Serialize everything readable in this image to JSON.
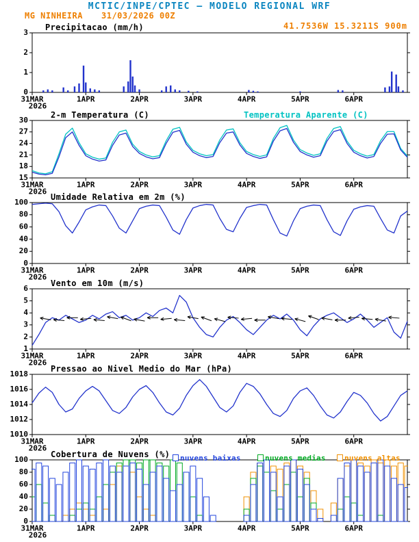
{
  "header": {
    "title": "MCTIC/INPE/CPTEC — MODELO REGIONAL WRF",
    "station": "MG NINHEIRA",
    "datetime": "31/03/2026 00Z",
    "location": "41.7536W 15.3211S 900m"
  },
  "colors": {
    "header": "#0a85c0",
    "accent_orange": "#ee7f00",
    "axis": "#000000",
    "line_blue": "#2233cc",
    "apparent_cyan": "#00c2c2",
    "wind_barb": "#000000",
    "cloud_low": "#2244dd",
    "cloud_mid": "#00aa22",
    "cloud_high": "#f09000"
  },
  "x_axis": {
    "tick_labels": [
      "31MAR",
      "1APR",
      "2APR",
      "3APR",
      "4APR",
      "5APR",
      "6APR"
    ],
    "year_label": "2026",
    "hours_total": 168
  },
  "chart_data": [
    {
      "type": "bar",
      "title": "Precipitacao (mm/h)",
      "ylabel": "mm/h",
      "ylim": [
        0,
        3
      ],
      "yticks": [
        0,
        1,
        2,
        3
      ],
      "color_key": "line_blue",
      "bars": [
        [
          5,
          0.1
        ],
        [
          7,
          0.15
        ],
        [
          9,
          0.1
        ],
        [
          14,
          0.25
        ],
        [
          16,
          0.1
        ],
        [
          19,
          0.3
        ],
        [
          21,
          0.45
        ],
        [
          23,
          1.35
        ],
        [
          24,
          0.5
        ],
        [
          26,
          0.2
        ],
        [
          28,
          0.15
        ],
        [
          30,
          0.1
        ],
        [
          41,
          0.3
        ],
        [
          43,
          0.55
        ],
        [
          44,
          1.62
        ],
        [
          45,
          0.8
        ],
        [
          46,
          0.35
        ],
        [
          48,
          0.15
        ],
        [
          58,
          0.1
        ],
        [
          60,
          0.3
        ],
        [
          62,
          0.35
        ],
        [
          64,
          0.15
        ],
        [
          66,
          0.1
        ],
        [
          70,
          0.08
        ],
        [
          74,
          0.05
        ],
        [
          97,
          0.12
        ],
        [
          99,
          0.08
        ],
        [
          101,
          0.05
        ],
        [
          120,
          0.05
        ],
        [
          137,
          0.12
        ],
        [
          139,
          0.1
        ],
        [
          158,
          0.25
        ],
        [
          160,
          0.3
        ],
        [
          161,
          1.05
        ],
        [
          163,
          0.9
        ],
        [
          164,
          0.3
        ],
        [
          166,
          0.1
        ]
      ]
    },
    {
      "type": "line",
      "title": "2-m Temperatura (C)",
      "ylim": [
        15,
        30
      ],
      "yticks": [
        15,
        18,
        21,
        24,
        27,
        30
      ],
      "step_hours": 3,
      "series": [
        {
          "name": "2-m Temperatura (C)",
          "color_key": "line_blue",
          "values": [
            16.5,
            16.0,
            15.8,
            16.2,
            20.5,
            25.5,
            27.0,
            23.5,
            20.8,
            19.9,
            19.4,
            19.7,
            23.5,
            26.2,
            26.7,
            23.2,
            21.4,
            20.5,
            20.0,
            20.3,
            24.0,
            26.9,
            27.4,
            23.8,
            21.7,
            20.8,
            20.3,
            20.6,
            24.2,
            26.7,
            27.0,
            23.6,
            21.4,
            20.6,
            20.1,
            20.5,
            24.6,
            27.3,
            27.9,
            24.3,
            21.9,
            21.0,
            20.4,
            20.8,
            24.6,
            27.1,
            27.6,
            24.0,
            21.7,
            20.8,
            20.2,
            20.6,
            24.0,
            26.4,
            26.5,
            22.3,
            20.4
          ]
        },
        {
          "name": "Temperatura Aparente (C)",
          "color_key": "apparent_cyan",
          "values": [
            16.9,
            16.3,
            16.1,
            16.6,
            21.3,
            26.4,
            28.0,
            24.2,
            21.3,
            20.4,
            19.9,
            20.2,
            24.3,
            27.0,
            27.5,
            23.8,
            21.9,
            21.0,
            20.5,
            20.8,
            24.7,
            27.7,
            28.2,
            24.4,
            22.2,
            21.3,
            20.8,
            21.1,
            24.9,
            27.5,
            27.8,
            24.2,
            21.9,
            21.1,
            20.6,
            21.0,
            25.3,
            28.1,
            28.7,
            24.9,
            22.4,
            21.5,
            20.9,
            21.3,
            25.3,
            27.9,
            28.4,
            24.6,
            22.2,
            21.3,
            20.7,
            21.1,
            24.7,
            27.1,
            27.1,
            22.7,
            20.7
          ]
        }
      ]
    },
    {
      "type": "line",
      "title": "Umidade Relativa em 2m (%)",
      "ylim": [
        0,
        100
      ],
      "yticks": [
        0,
        20,
        40,
        60,
        80,
        100
      ],
      "step_hours": 3,
      "series": [
        {
          "name": "Umidade Relativa",
          "color_key": "line_blue",
          "values": [
            97,
            98,
            99,
            98,
            85,
            62,
            50,
            68,
            88,
            93,
            96,
            95,
            78,
            58,
            50,
            70,
            90,
            94,
            96,
            95,
            76,
            55,
            48,
            72,
            91,
            95,
            97,
            96,
            74,
            56,
            52,
            74,
            92,
            95,
            97,
            96,
            72,
            50,
            45,
            70,
            90,
            94,
            96,
            95,
            72,
            52,
            46,
            70,
            89,
            93,
            95,
            94,
            74,
            55,
            50,
            78,
            86
          ]
        }
      ]
    },
    {
      "type": "wind",
      "title": "Vento em 10m (m/s)",
      "ylim": [
        1,
        6
      ],
      "yticks": [
        1,
        2,
        3,
        4,
        5,
        6
      ],
      "step_hours": 3,
      "series": [
        {
          "name": "Vento em 10m",
          "color_key": "line_blue",
          "values": [
            1.3,
            2.2,
            3.2,
            3.6,
            3.4,
            3.8,
            3.5,
            3.2,
            3.4,
            3.8,
            3.5,
            3.9,
            4.1,
            3.6,
            3.8,
            3.4,
            3.6,
            4.0,
            3.7,
            4.2,
            4.4,
            4.0,
            5.45,
            4.9,
            3.6,
            2.8,
            2.2,
            2.0,
            2.8,
            3.4,
            3.7,
            3.2,
            2.6,
            2.2,
            2.8,
            3.4,
            3.8,
            3.5,
            3.9,
            3.4,
            2.6,
            2.1,
            2.9,
            3.5,
            3.8,
            4.0,
            3.6,
            3.2,
            3.5,
            3.9,
            3.4,
            2.8,
            3.2,
            3.6,
            2.4,
            1.9,
            3.3
          ]
        }
      ],
      "barbs": [
        [
          6,
          3.5,
          100
        ],
        [
          12,
          3.4,
          95
        ],
        [
          18,
          3.6,
          90
        ],
        [
          24,
          3.5,
          85
        ],
        [
          30,
          3.4,
          95
        ],
        [
          36,
          3.6,
          100
        ],
        [
          42,
          3.5,
          110
        ],
        [
          48,
          3.4,
          100
        ],
        [
          54,
          3.6,
          90
        ],
        [
          60,
          3.5,
          85
        ],
        [
          66,
          3.4,
          95
        ],
        [
          72,
          3.6,
          100
        ],
        [
          78,
          3.5,
          110
        ],
        [
          84,
          3.4,
          105
        ],
        [
          90,
          3.6,
          95
        ],
        [
          96,
          3.5,
          85
        ],
        [
          102,
          3.4,
          90
        ],
        [
          108,
          3.6,
          100
        ],
        [
          114,
          3.5,
          95
        ],
        [
          120,
          3.4,
          105
        ],
        [
          126,
          3.6,
          110
        ],
        [
          132,
          3.5,
          100
        ],
        [
          138,
          3.4,
          90
        ],
        [
          144,
          3.6,
          85
        ],
        [
          150,
          3.5,
          95
        ],
        [
          156,
          3.4,
          100
        ],
        [
          162,
          3.6,
          95
        ]
      ]
    },
    {
      "type": "line",
      "title": "Pressao ao Nivel Medio do Mar (hPa)",
      "ylim": [
        1010,
        1018
      ],
      "yticks": [
        1010,
        1012,
        1014,
        1016,
        1018
      ],
      "step_hours": 3,
      "series": [
        {
          "name": "Pressao ao Nivel Medio do Mar",
          "color_key": "line_blue",
          "values": [
            1014.2,
            1015.5,
            1016.3,
            1015.6,
            1014.0,
            1013.0,
            1013.4,
            1014.8,
            1015.8,
            1016.4,
            1015.8,
            1014.5,
            1013.2,
            1012.8,
            1013.6,
            1015.0,
            1016.0,
            1016.5,
            1015.6,
            1014.2,
            1013.0,
            1012.6,
            1013.5,
            1015.2,
            1016.5,
            1017.3,
            1016.4,
            1015.0,
            1013.6,
            1013.0,
            1013.8,
            1015.6,
            1016.8,
            1016.4,
            1015.4,
            1014.0,
            1012.8,
            1012.4,
            1013.2,
            1014.8,
            1015.8,
            1016.2,
            1015.2,
            1013.8,
            1012.6,
            1012.2,
            1013.0,
            1014.4,
            1015.6,
            1015.2,
            1014.2,
            1012.8,
            1011.8,
            1012.4,
            1013.8,
            1015.2,
            1015.8
          ]
        }
      ]
    },
    {
      "type": "cloudbars",
      "title": "Cobertura de Nuvens (%)",
      "ylim": [
        0,
        100
      ],
      "yticks": [
        0,
        20,
        40,
        60,
        80,
        100
      ],
      "step_hours": 3,
      "series": [
        {
          "name": "nuvens baixas",
          "color_key": "cloud_low",
          "values": [
            85,
            95,
            90,
            70,
            60,
            80,
            95,
            100,
            90,
            85,
            95,
            100,
            90,
            80,
            90,
            95,
            85,
            60,
            80,
            90,
            70,
            50,
            60,
            80,
            90,
            70,
            40,
            10,
            0,
            0,
            0,
            0,
            10,
            60,
            95,
            100,
            80,
            40,
            90,
            100,
            85,
            60,
            20,
            5,
            0,
            10,
            70,
            95,
            100,
            90,
            80,
            95,
            100,
            90,
            70,
            60,
            55
          ]
        },
        {
          "name": "nuvens medias",
          "color_key": "cloud_mid",
          "values": [
            40,
            60,
            30,
            10,
            0,
            0,
            10,
            20,
            30,
            20,
            40,
            60,
            80,
            95,
            100,
            100,
            95,
            100,
            100,
            95,
            90,
            100,
            95,
            80,
            40,
            10,
            0,
            0,
            0,
            0,
            0,
            0,
            20,
            70,
            90,
            80,
            50,
            20,
            60,
            80,
            40,
            70,
            30,
            0,
            0,
            0,
            20,
            40,
            30,
            10,
            0,
            0,
            10,
            0,
            0,
            0,
            0
          ]
        },
        {
          "name": "nuvens altas",
          "color_key": "cloud_high",
          "values": [
            0,
            0,
            0,
            0,
            0,
            10,
            20,
            30,
            20,
            10,
            0,
            20,
            60,
            90,
            100,
            80,
            40,
            20,
            10,
            0,
            0,
            0,
            0,
            0,
            0,
            0,
            0,
            0,
            0,
            0,
            0,
            0,
            40,
            80,
            95,
            100,
            90,
            85,
            95,
            100,
            90,
            80,
            50,
            20,
            0,
            30,
            70,
            90,
            100,
            95,
            90,
            100,
            95,
            100,
            90,
            95,
            90
          ]
        }
      ]
    }
  ]
}
